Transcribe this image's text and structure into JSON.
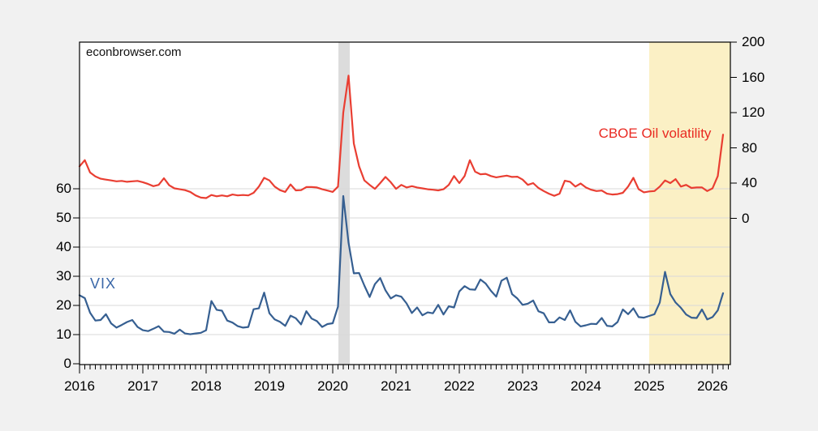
{
  "watermark": "econbrowser.com",
  "chart_data": {
    "type": "line",
    "title": "",
    "x_axis": {
      "tick_labels": [
        "2016",
        "2017",
        "2018",
        "2019",
        "2020",
        "2021",
        "2022",
        "2023",
        "2024",
        "2025",
        "2026"
      ],
      "tick_years": [
        2016,
        2017,
        2018,
        2019,
        2020,
        2021,
        2022,
        2023,
        2024,
        2025,
        2026
      ],
      "range": [
        2016.0,
        2026.28
      ],
      "minor_tick_interval": "monthly"
    },
    "left_axis": {
      "tick_values": [
        0,
        10,
        20,
        30,
        40,
        50,
        60
      ],
      "tick_labels": [
        "0",
        "10",
        "20",
        "30",
        "40",
        "50",
        "60"
      ],
      "grid_values": [
        10,
        20,
        30,
        40,
        50,
        60
      ],
      "range": [
        0,
        110.3
      ]
    },
    "right_axis": {
      "tick_values": [
        0,
        40,
        80,
        120,
        160,
        200
      ],
      "tick_labels": [
        "0",
        "40",
        "80",
        "120",
        "160",
        "200"
      ],
      "range": [
        -165,
        200
      ]
    },
    "x_start_year": 2016,
    "x_frequency": "monthly",
    "series": [
      {
        "name": "CBOE Oil volatility",
        "axis": "right",
        "color": "#e93e32",
        "label_color": "#e92a22",
        "values": [
          59,
          66,
          52,
          47.5,
          45,
          44,
          43,
          42,
          42.5,
          41.5,
          42,
          42.5,
          41,
          39,
          36.5,
          38,
          45.5,
          37.5,
          34,
          33,
          32,
          30,
          26,
          23.5,
          23,
          26.5,
          25,
          26,
          25,
          27,
          26,
          26.5,
          26,
          29,
          36,
          46,
          43,
          36,
          32,
          30,
          38.5,
          31.7,
          32,
          35.5,
          35.5,
          35,
          33,
          31.5,
          30,
          36,
          120,
          162,
          85,
          59,
          43,
          38,
          33.5,
          40,
          47,
          41,
          33.5,
          38,
          35,
          36.5,
          35,
          34,
          33,
          32.5,
          31.7,
          33,
          38,
          48,
          40,
          48,
          66,
          53,
          50,
          50.5,
          48,
          46.5,
          47.5,
          48.5,
          47,
          47.3,
          44,
          38,
          40,
          34.5,
          31,
          28,
          25.6,
          28,
          42.7,
          41.5,
          36,
          39.5,
          35,
          32.5,
          31,
          31.5,
          28,
          27,
          27.5,
          29,
          36,
          46,
          33,
          29.5,
          30.5,
          31,
          36,
          43,
          40,
          44.5,
          36,
          38,
          34.5,
          35,
          35,
          31,
          34,
          48,
          95
        ]
      },
      {
        "name": "VIX",
        "axis": "left",
        "color": "#365f91",
        "label_color": "#3a67a8",
        "values": [
          23.5,
          22.5,
          17.5,
          14.8,
          15.0,
          17.0,
          13.8,
          12.4,
          13.3,
          14.3,
          15.0,
          12.6,
          11.5,
          11.2,
          12.0,
          12.9,
          11.0,
          10.9,
          10.3,
          11.7,
          10.4,
          10.1,
          10.4,
          10.6,
          11.5,
          21.5,
          18.5,
          18.2,
          14.8,
          14.1,
          12.9,
          12.4,
          12.6,
          18.7,
          19.0,
          24.4,
          17.3,
          15.2,
          14.4,
          13.0,
          16.5,
          15.6,
          13.5,
          18.0,
          15.5,
          14.6,
          12.6,
          13.6,
          13.9,
          19.6,
          57.5,
          41.5,
          31.0,
          31.1,
          26.8,
          22.9,
          27.3,
          29.4,
          25.2,
          22.4,
          23.5,
          23.0,
          20.7,
          17.4,
          19.3,
          16.6,
          17.6,
          17.3,
          20.2,
          16.9,
          19.7,
          19.3,
          24.8,
          26.6,
          25.5,
          25.4,
          28.9,
          27.5,
          25.0,
          23.0,
          28.5,
          29.5,
          23.9,
          22.4,
          20.2,
          20.6,
          21.7,
          18.0,
          17.3,
          14.2,
          14.2,
          15.9,
          15.0,
          18.3,
          14.4,
          12.8,
          13.2,
          13.7,
          13.6,
          15.7,
          13.0,
          12.8,
          14.3,
          18.6,
          17.0,
          19.0,
          16.0,
          15.8,
          16.4,
          17.0,
          21.0,
          31.5,
          23.9,
          21.0,
          19.2,
          16.9,
          15.8,
          15.7,
          18.6,
          15.2,
          16.0,
          18.3,
          24.2
        ]
      }
    ],
    "bands": [
      {
        "name": "recession-2020",
        "x0": 2020.09,
        "x1": 2020.27,
        "color": "#dcdcdc"
      },
      {
        "name": "highlight-2025-2026",
        "x0": 2025.0,
        "x1": 2026.28,
        "color": "#fbf0c5"
      }
    ],
    "colors": {
      "plot_background": "#ffffff",
      "outer_background": "#f1f1f1",
      "gridline": "#d9d9d9",
      "frame": "#000000",
      "tick": "#000000"
    }
  }
}
